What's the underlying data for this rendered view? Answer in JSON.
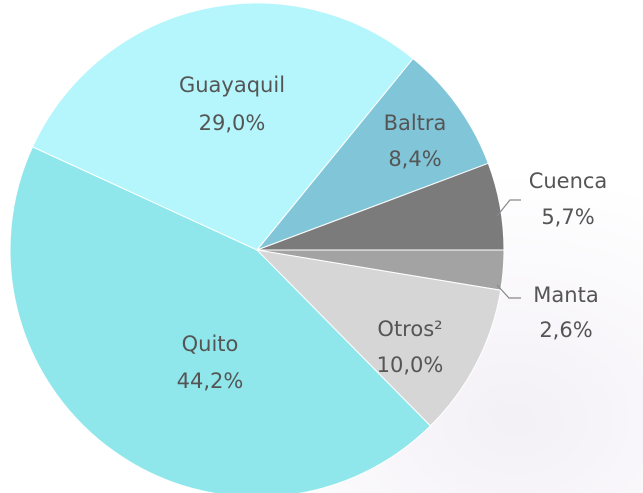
{
  "chart_data": {
    "type": "pie",
    "categories": [
      "Manta",
      "Otros²",
      "Quito",
      "Guayaquil",
      "Baltra",
      "Cuenca"
    ],
    "values": [
      2.6,
      10.0,
      44.2,
      29.0,
      8.4,
      5.7
    ],
    "value_labels": [
      "2,6%",
      "10,0%",
      "44,2%",
      "29,0%",
      "8,4%",
      "5,7%"
    ],
    "colors": [
      "#a3a3a3",
      "#d6d6d6",
      "#8fe7ec",
      "#b5f6fc",
      "#80c5d8",
      "#7b7b7b"
    ]
  }
}
